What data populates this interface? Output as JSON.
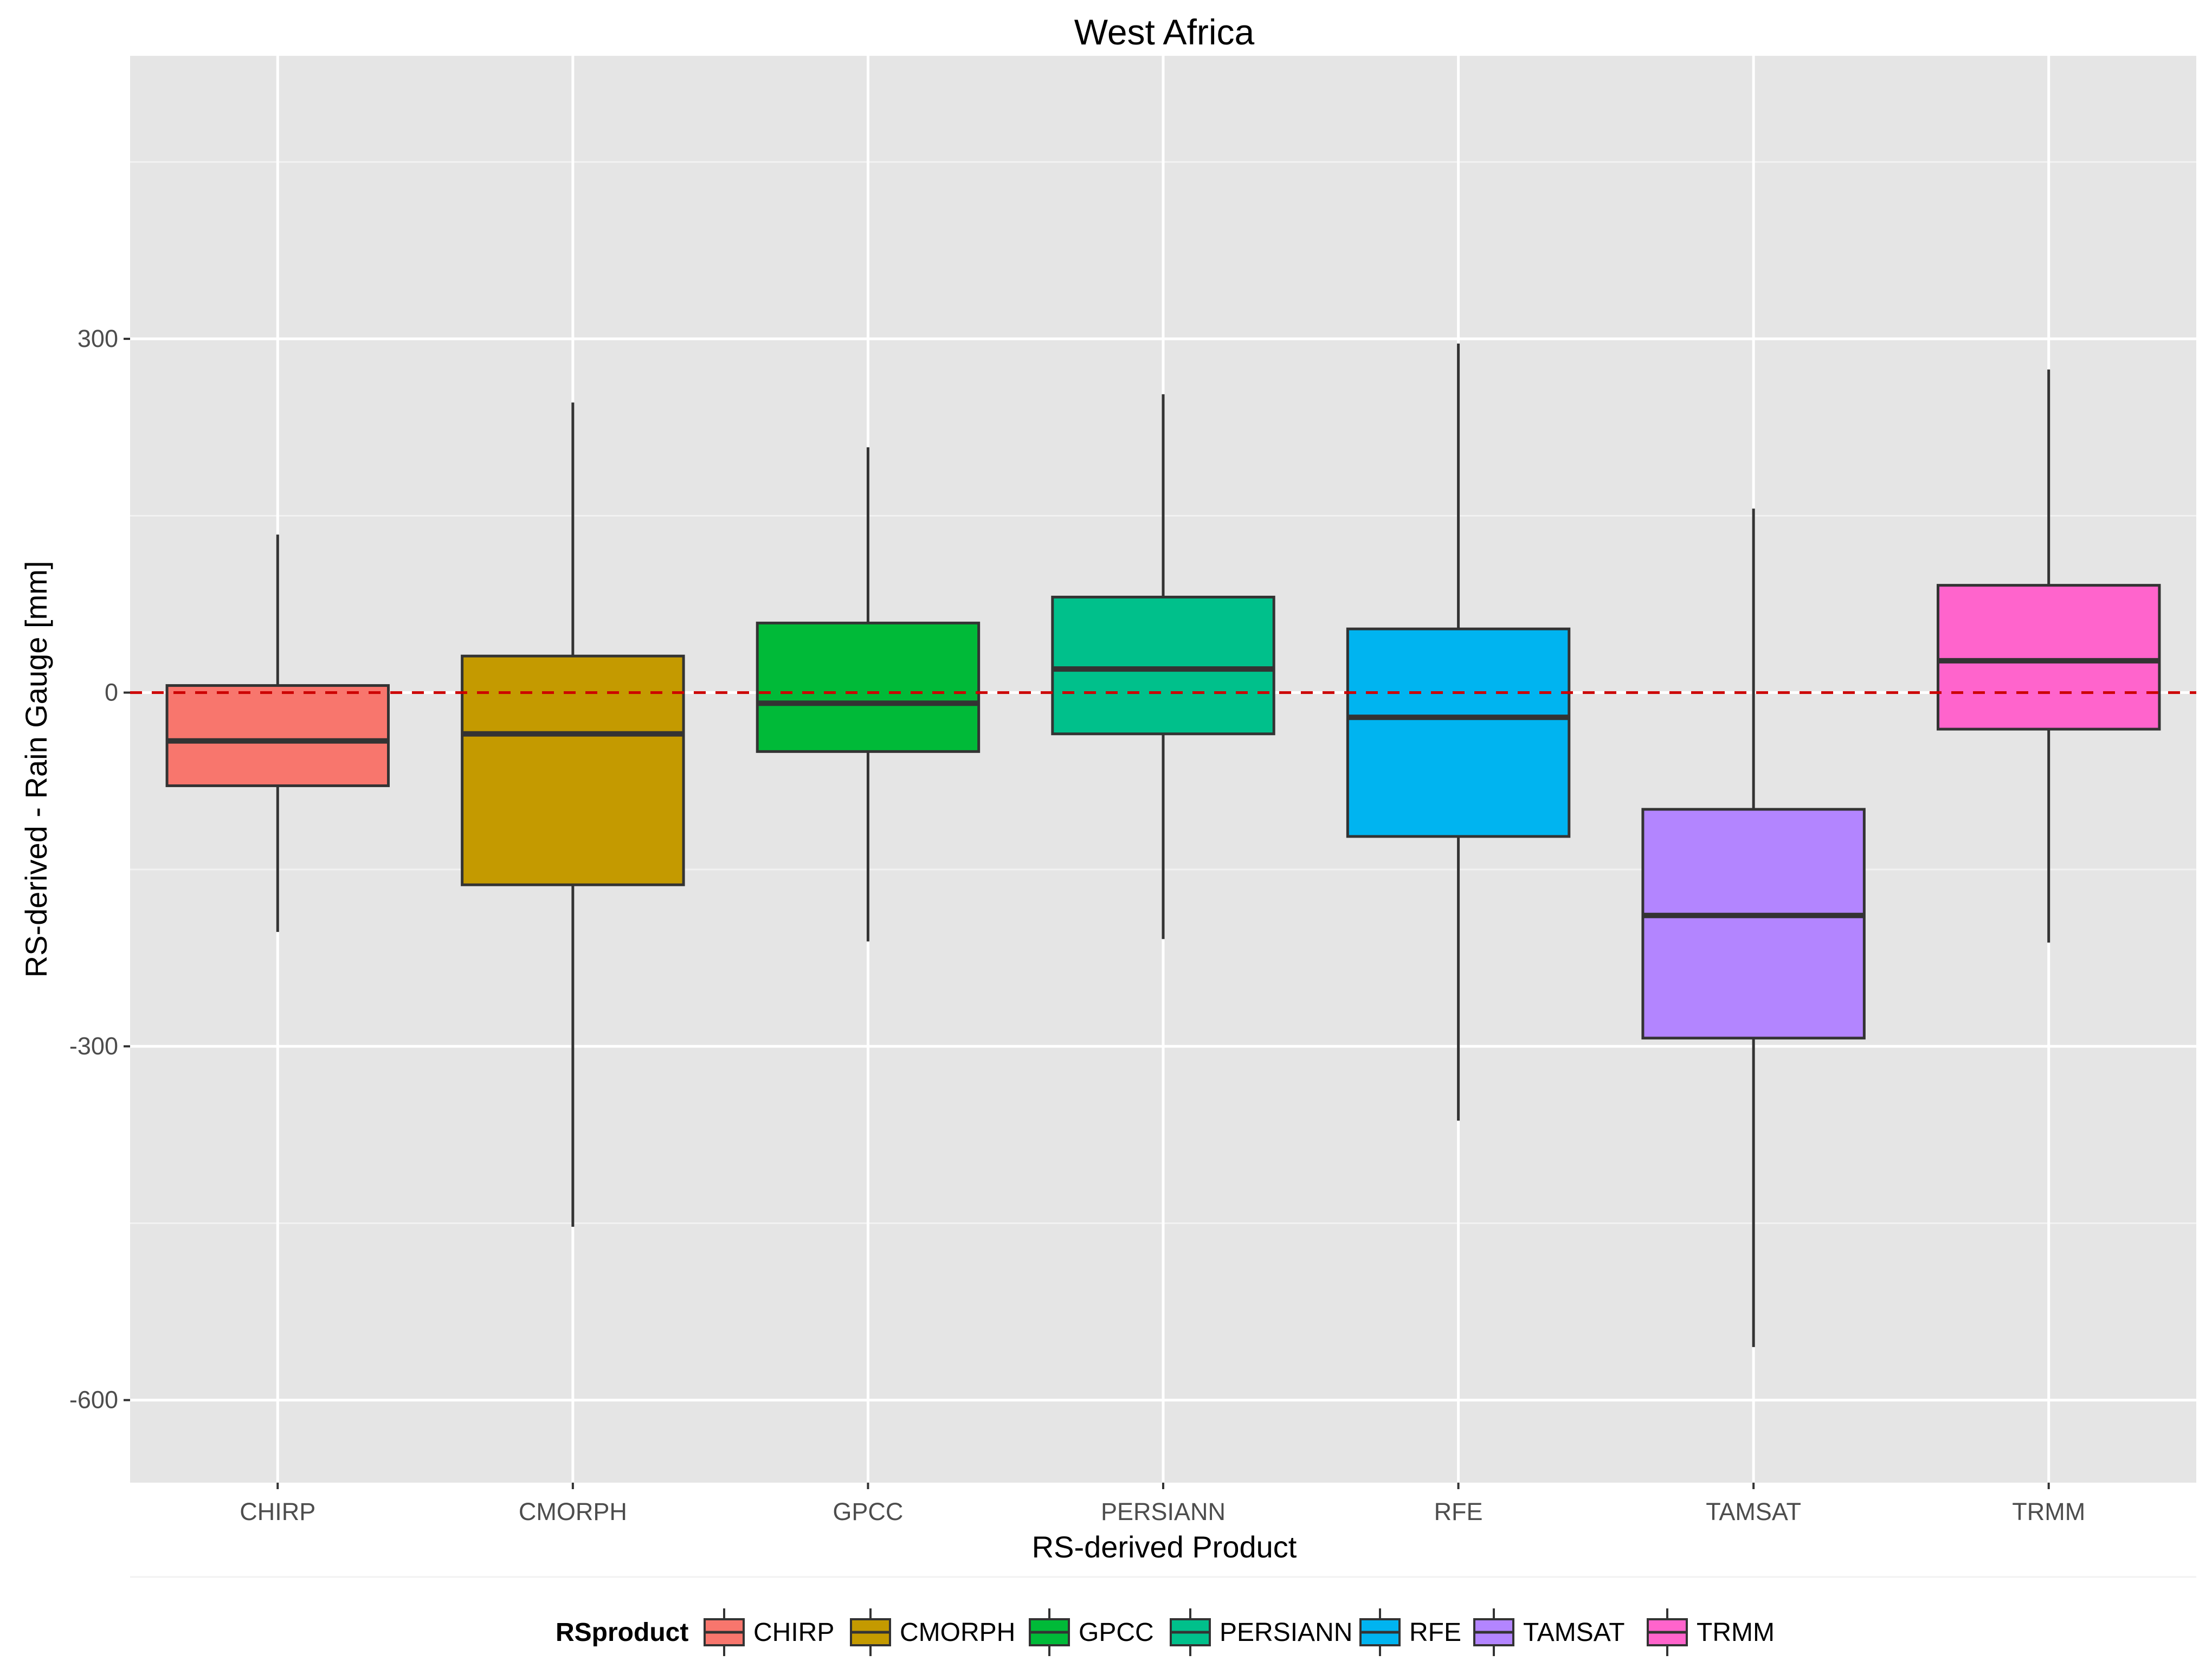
{
  "chart_data": {
    "type": "boxplot",
    "title": "West Africa",
    "xlabel": "RS-derived Product",
    "ylabel": "RS-derived - Rain Gauge [mm]",
    "ylim": [
      -670,
      540
    ],
    "yticks": [
      300,
      0,
      -300,
      -600
    ],
    "ytick_labels": [
      "300",
      "0",
      "-300",
      "-600"
    ],
    "reference_line": {
      "y": 0,
      "style": "dashed",
      "color": "#cc0000"
    },
    "categories": [
      "CHIRP",
      "CMORPH",
      "GPCC",
      "PERSIANN",
      "RFE",
      "TAMSAT",
      "TRMM"
    ],
    "series": [
      {
        "name": "CHIRP",
        "color": "#f8766d",
        "whisker_low": -203,
        "q1": -79,
        "median": -41,
        "q3": 6,
        "whisker_high": 134
      },
      {
        "name": "CMORPH",
        "color": "#c49a00",
        "whisker_low": -453,
        "q1": -163,
        "median": -35,
        "q3": 31,
        "whisker_high": 246
      },
      {
        "name": "GPCC",
        "color": "#00ba38",
        "whisker_low": -211,
        "q1": -50,
        "median": -9,
        "q3": 59,
        "whisker_high": 208
      },
      {
        "name": "PERSIANN",
        "color": "#00c08b",
        "whisker_low": -209,
        "q1": -35,
        "median": 20,
        "q3": 81,
        "whisker_high": 253
      },
      {
        "name": "RFE",
        "color": "#00b4f0",
        "whisker_low": -363,
        "q1": -122,
        "median": -21,
        "q3": 54,
        "whisker_high": 296
      },
      {
        "name": "TAMSAT",
        "color": "#b385ff",
        "whisker_low": -555,
        "q1": -293,
        "median": -189,
        "q3": -99,
        "whisker_high": 156
      },
      {
        "name": "TRMM",
        "color": "#ff64cc",
        "whisker_low": -212,
        "q1": -31,
        "median": 27,
        "q3": 91,
        "whisker_high": 274
      }
    ],
    "legend": {
      "title": "RSproduct",
      "position": "bottom"
    },
    "grid": true
  }
}
